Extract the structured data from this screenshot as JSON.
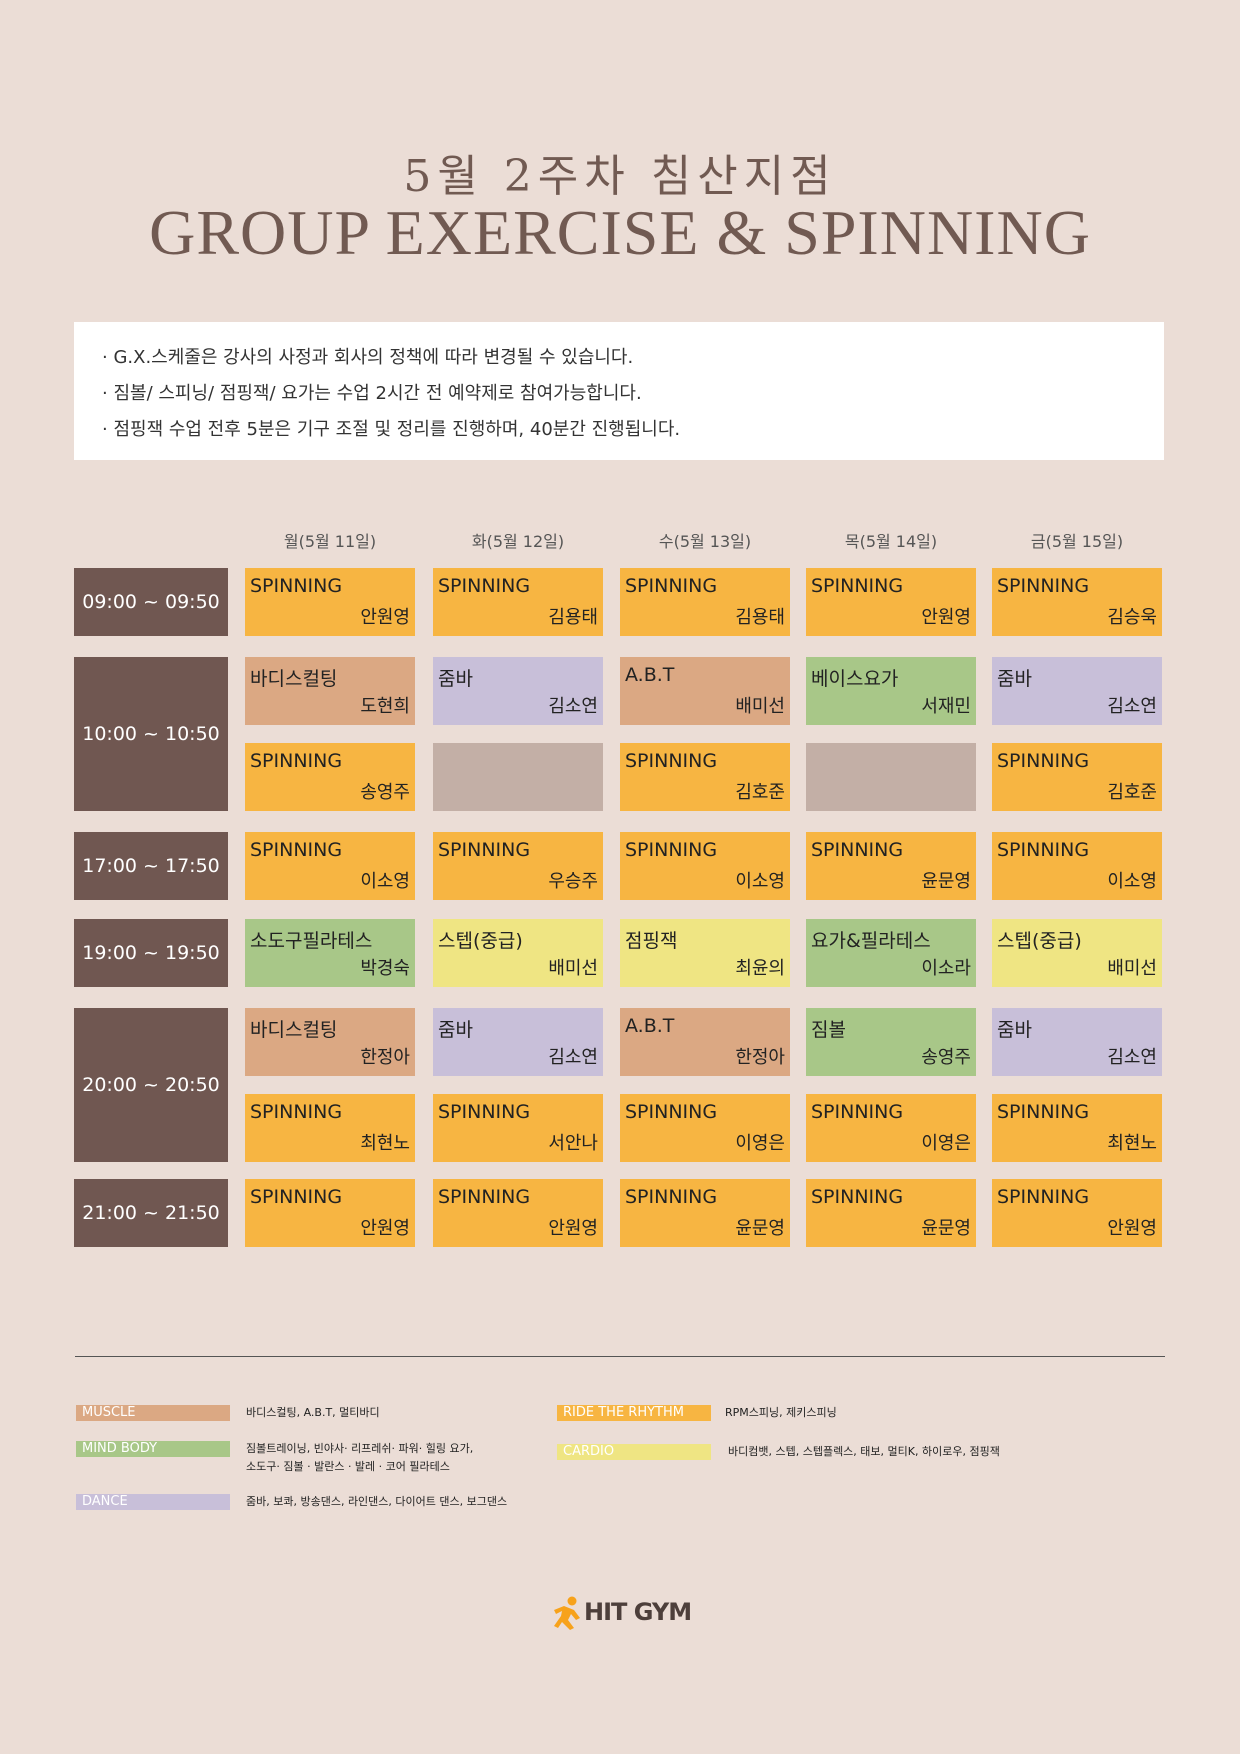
{
  "header": {
    "title_kr": "5월 2주차 침산지점",
    "title_en": "GROUP EXERCISE & SPINNING"
  },
  "notices": [
    "· G.X.스케줄은 강사의 사정과 회사의 정책에 따라 변경될 수 있습니다.",
    "· 짐볼/ 스피닝/ 점핑잭/ 요가는 수업 2시간 전 예약제로 참여가능합니다.",
    "· 점핑잭 수업 전후 5분은 기구 조절 및 정리를 진행하며, 40분간 진행됩니다."
  ],
  "days": [
    "월(5월 11일)",
    "화(5월 12일)",
    "수(5월 13일)",
    "목(5월 14일)",
    "금(5월 15일)"
  ],
  "times": [
    "09:00 ~ 09:50",
    "10:00 ~ 10:50",
    "17:00 ~ 17:50",
    "19:00 ~ 19:50",
    "20:00 ~ 20:50",
    "21:00 ~ 21:50"
  ],
  "colors": {
    "spinning": "#f7b542",
    "muscle": "#dba883",
    "dance": "#c8bfd9",
    "mind_body": "#a8c788",
    "cardio": "#efe583",
    "empty": "#c3afa6",
    "time_bg": "#705751"
  },
  "schedule": {
    "r0": [
      {
        "name": "SPINNING",
        "instructor": "안원영"
      },
      {
        "name": "SPINNING",
        "instructor": "김용태"
      },
      {
        "name": "SPINNING",
        "instructor": "김용태"
      },
      {
        "name": " SPINNING",
        "instructor": "안원영"
      },
      {
        "name": "SPINNING",
        "instructor": "김승욱"
      }
    ],
    "r1a": [
      {
        "name": "바디스컬팅",
        "instructor": "도현희"
      },
      {
        "name": "줌바",
        "instructor": "김소연"
      },
      {
        "name": "A.B.T",
        "instructor": "배미선"
      },
      {
        "name": "베이스요가",
        "instructor": "서재민"
      },
      {
        "name": "줌바",
        "instructor": "김소연"
      }
    ],
    "r1b": [
      {
        "name": "SPINNING",
        "instructor": "송영주"
      },
      {
        "name": "",
        "instructor": ""
      },
      {
        "name": "SPINNING",
        "instructor": "김호준"
      },
      {
        "name": "",
        "instructor": ""
      },
      {
        "name": "SPINNING",
        "instructor": "김호준"
      }
    ],
    "r2": [
      {
        "name": "SPINNING",
        "instructor": "이소영"
      },
      {
        "name": "SPINNING",
        "instructor": "우승주"
      },
      {
        "name": "SPINNING",
        "instructor": "이소영"
      },
      {
        "name": "SPINNING",
        "instructor": "윤문영"
      },
      {
        "name": "SPINNING",
        "instructor": "이소영"
      }
    ],
    "r3": [
      {
        "name": "소도구필라테스",
        "instructor": "박경숙"
      },
      {
        "name": "스텝(중급)",
        "instructor": "배미선"
      },
      {
        "name": "점핑잭",
        "instructor": "최윤의"
      },
      {
        "name": "요가&필라테스",
        "instructor": "이소라"
      },
      {
        "name": "스텝(중급)",
        "instructor": "배미선"
      }
    ],
    "r4a": [
      {
        "name": "바디스컬팅",
        "instructor": "한정아"
      },
      {
        "name": "줌바",
        "instructor": "김소연"
      },
      {
        "name": "A.B.T",
        "instructor": "한정아"
      },
      {
        "name": "짐볼",
        "instructor": "송영주"
      },
      {
        "name": "줌바",
        "instructor": "김소연"
      }
    ],
    "r4b": [
      {
        "name": "SPINNING",
        "instructor": "최현노"
      },
      {
        "name": "SPINNING",
        "instructor": "서안나"
      },
      {
        "name": "SPINNING",
        "instructor": "이영은"
      },
      {
        "name": "SPINNING",
        "instructor": "이영은"
      },
      {
        "name": "SPINNING",
        "instructor": "최현노"
      }
    ],
    "r5": [
      {
        "name": "SPINNING",
        "instructor": "안원영"
      },
      {
        "name": "SPINNING",
        "instructor": "안원영"
      },
      {
        "name": "SPINNING",
        "instructor": "윤문영"
      },
      {
        "name": "SPINNING",
        "instructor": "윤문영"
      },
      {
        "name": "SPINNING",
        "instructor": "안원영"
      }
    ]
  },
  "legend": {
    "muscle": {
      "label": "MUSCLE",
      "desc": "바디스컬팅, A.B.T, 멀티바디"
    },
    "mind_body": {
      "label": "MIND BODY",
      "desc1": "짐볼트레이닝, 빈야사· 리프레쉬· 파워· 힐링 요가,",
      "desc2": "소도구· 짐볼 · 발란스 · 발레 · 코어 필라테스"
    },
    "dance": {
      "label": "DANCE",
      "desc": "줌바, 보콰, 방송댄스, 라인댄스, 다이어트 댄스, 보그댄스"
    },
    "ride": {
      "label": "RIDE THE RHYTHM",
      "desc": "RPM스피닝, 제키스피닝"
    },
    "cardio": {
      "label": "CARDIO",
      "desc": "바디컴뱃, 스텝, 스텝플렉스, 태보, 멀티K, 하이로우, 점핑잭"
    }
  },
  "brand": {
    "name": "HIT GYM",
    "logo_icon": "running-person-icon"
  }
}
